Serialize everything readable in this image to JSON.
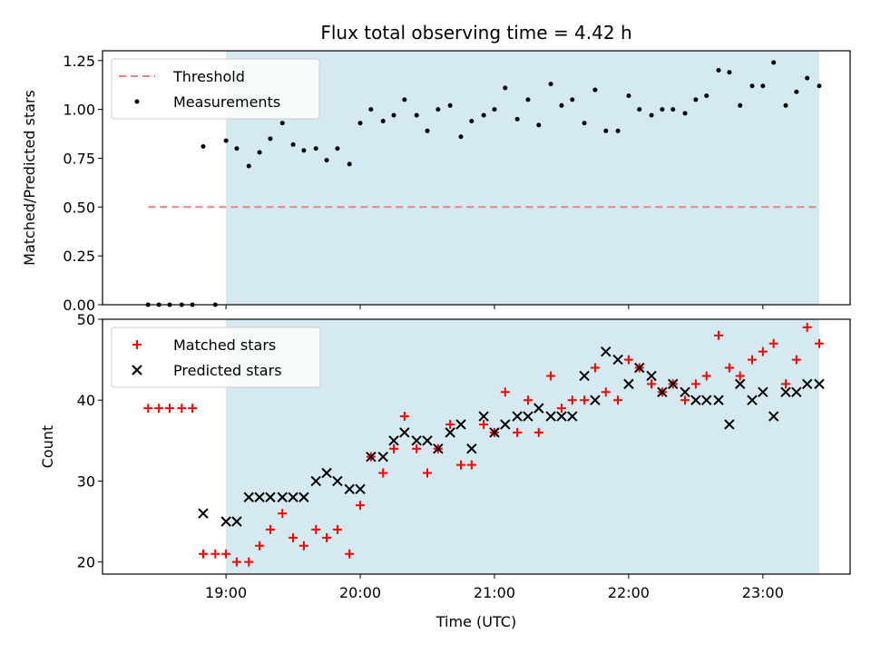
{
  "chart_data": {
    "type": "scatter",
    "title": "Flux total observing time = 4.42 h",
    "xlabel": "Time (UTC)",
    "x_ticks": [
      "19:00",
      "20:00",
      "21:00",
      "22:00",
      "23:00"
    ],
    "x_range_hours": [
      18.08,
      23.65
    ],
    "shaded_interval_hours": [
      19.0,
      23.42
    ],
    "shade_color": "#d4eaf0",
    "panels": [
      {
        "ylabel": "Matched/Predicted stars",
        "ylim": [
          0,
          1.3
        ],
        "y_ticks": [
          "0.00",
          "0.25",
          "0.50",
          "0.75",
          "1.00",
          "1.25"
        ],
        "legend": {
          "placement": "top-left",
          "entries": [
            "Threshold",
            "Measurements"
          ]
        },
        "series": [
          {
            "name": "Threshold",
            "style": "dashed-line",
            "color": "#f08080",
            "x": [
              18.42,
              23.42
            ],
            "y": [
              0.5,
              0.5
            ]
          },
          {
            "name": "Measurements",
            "style": "dot",
            "color": "#000000",
            "x": [
              18.42,
              18.5,
              18.58,
              18.67,
              18.75,
              18.83,
              18.92,
              19.0,
              19.08,
              19.17,
              19.25,
              19.33,
              19.42,
              19.5,
              19.58,
              19.67,
              19.75,
              19.83,
              19.92,
              20.0,
              20.08,
              20.17,
              20.25,
              20.33,
              20.42,
              20.5,
              20.58,
              20.67,
              20.75,
              20.83,
              20.92,
              21.0,
              21.08,
              21.17,
              21.25,
              21.33,
              21.42,
              21.5,
              21.58,
              21.67,
              21.75,
              21.83,
              21.92,
              22.0,
              22.08,
              22.17,
              22.25,
              22.33,
              22.42,
              22.5,
              22.58,
              22.67,
              22.75,
              22.83,
              22.92,
              23.0,
              23.08,
              23.17,
              23.25,
              23.33,
              23.42
            ],
            "y": [
              0.0,
              0.0,
              0.0,
              0.0,
              0.0,
              0.81,
              0.0,
              0.84,
              0.8,
              0.71,
              0.78,
              0.85,
              0.93,
              0.82,
              0.79,
              0.8,
              0.74,
              0.8,
              0.72,
              0.93,
              1.0,
              0.94,
              0.97,
              1.05,
              0.97,
              0.89,
              1.0,
              1.02,
              0.86,
              0.94,
              0.97,
              1.0,
              1.11,
              0.95,
              1.05,
              0.92,
              1.13,
              1.02,
              1.05,
              0.93,
              1.1,
              0.89,
              0.89,
              1.07,
              1.0,
              0.97,
              1.0,
              1.0,
              0.98,
              1.05,
              1.07,
              1.2,
              1.19,
              1.02,
              1.12,
              1.12,
              1.24,
              1.02,
              1.09,
              1.16,
              1.12
            ]
          }
        ]
      },
      {
        "ylabel": "Count",
        "ylim": [
          18.5,
          50
        ],
        "y_ticks": [
          "20",
          "30",
          "40",
          "50"
        ],
        "legend": {
          "placement": "top-left",
          "entries": [
            "Matched stars",
            "Predicted stars"
          ]
        },
        "series": [
          {
            "name": "Matched stars",
            "style": "plus",
            "color": "#ff0000",
            "x": [
              18.42,
              18.5,
              18.58,
              18.67,
              18.75,
              18.83,
              18.92,
              19.0,
              19.08,
              19.17,
              19.25,
              19.33,
              19.42,
              19.5,
              19.58,
              19.67,
              19.75,
              19.83,
              19.92,
              20.0,
              20.08,
              20.17,
              20.25,
              20.33,
              20.42,
              20.5,
              20.58,
              20.67,
              20.75,
              20.83,
              20.92,
              21.0,
              21.08,
              21.17,
              21.25,
              21.33,
              21.42,
              21.5,
              21.58,
              21.67,
              21.75,
              21.83,
              21.92,
              22.0,
              22.08,
              22.17,
              22.25,
              22.33,
              22.42,
              22.5,
              22.58,
              22.67,
              22.75,
              22.83,
              22.92,
              23.0,
              23.08,
              23.17,
              23.25,
              23.33,
              23.42
            ],
            "y": [
              39,
              39,
              39,
              39,
              39,
              21,
              21,
              21,
              20,
              20,
              22,
              24,
              26,
              23,
              22,
              24,
              23,
              24,
              21,
              27,
              33,
              31,
              34,
              38,
              34,
              31,
              34,
              37,
              32,
              32,
              37,
              36,
              41,
              36,
              40,
              36,
              43,
              39,
              40,
              40,
              44,
              41,
              40,
              45,
              44,
              42,
              41,
              42,
              40,
              42,
              43,
              48,
              44,
              43,
              45,
              46,
              47,
              42,
              45,
              49,
              47
            ]
          },
          {
            "name": "Predicted stars",
            "style": "x",
            "color": "#000000",
            "x": [
              18.83,
              19.0,
              19.08,
              19.17,
              19.25,
              19.33,
              19.42,
              19.5,
              19.58,
              19.67,
              19.75,
              19.83,
              19.92,
              20.0,
              20.08,
              20.17,
              20.25,
              20.33,
              20.42,
              20.5,
              20.58,
              20.67,
              20.75,
              20.83,
              20.92,
              21.0,
              21.08,
              21.17,
              21.25,
              21.33,
              21.42,
              21.5,
              21.58,
              21.67,
              21.75,
              21.83,
              21.92,
              22.0,
              22.08,
              22.17,
              22.25,
              22.33,
              22.42,
              22.5,
              22.58,
              22.67,
              22.75,
              22.83,
              22.92,
              23.0,
              23.08,
              23.17,
              23.25,
              23.33,
              23.42
            ],
            "y": [
              26,
              25,
              25,
              28,
              28,
              28,
              28,
              28,
              28,
              30,
              31,
              30,
              29,
              29,
              33,
              33,
              35,
              36,
              35,
              35,
              34,
              36,
              37,
              34,
              38,
              36,
              37,
              38,
              38,
              39,
              38,
              38,
              38,
              43,
              40,
              46,
              45,
              42,
              44,
              43,
              41,
              42,
              41,
              40,
              40,
              40,
              37,
              42,
              40,
              41,
              38,
              41,
              41,
              42,
              42
            ]
          }
        ]
      }
    ]
  }
}
